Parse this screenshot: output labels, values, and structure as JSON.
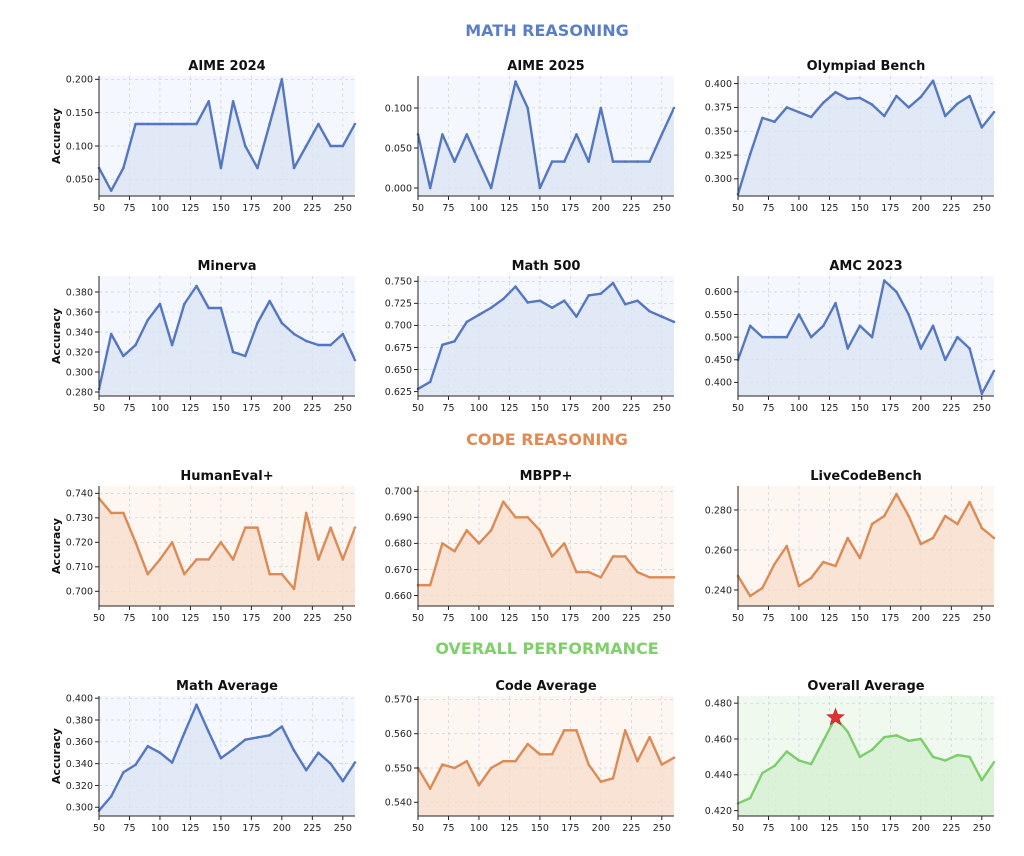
{
  "sections": [
    {
      "id": "math",
      "title": "MATH REASONING",
      "color": "#5b7fc6"
    },
    {
      "id": "code",
      "title": "CODE REASONING",
      "color": "#e08b55"
    },
    {
      "id": "overall",
      "title": "OVERALL PERFORMANCE",
      "color": "#7fcf6a"
    }
  ],
  "colors": {
    "math": {
      "line": "#5577c2",
      "fill": "#dbe4f3",
      "bg": "#f4f7fd"
    },
    "code": {
      "line": "#dc8a56",
      "fill": "#f6dccb",
      "bg": "#fdf6f1"
    },
    "overall": {
      "line": "#7cce6c",
      "fill": "#d6efd0",
      "bg": "#f0f9ee"
    },
    "star": "#e03030"
  },
  "chart_data": [
    {
      "type": "area",
      "id": "aime2024",
      "section": "math",
      "title": "AIME 2024",
      "ylabel": "Accuracy",
      "x": [
        50,
        60,
        70,
        80,
        90,
        100,
        110,
        120,
        130,
        140,
        150,
        160,
        170,
        180,
        190,
        200,
        210,
        220,
        230,
        240,
        250,
        260
      ],
      "y": [
        0.067,
        0.033,
        0.067,
        0.133,
        0.133,
        0.133,
        0.133,
        0.133,
        0.133,
        0.167,
        0.067,
        0.167,
        0.1,
        0.067,
        0.133,
        0.2,
        0.067,
        0.1,
        0.133,
        0.1,
        0.1,
        0.133
      ],
      "xlim": [
        50,
        260
      ],
      "ylim": [
        0.025,
        0.205
      ],
      "xticks": [
        50,
        75,
        100,
        125,
        150,
        175,
        200,
        225,
        250
      ],
      "yticks": [
        0.05,
        0.1,
        0.15,
        0.2
      ],
      "ytick_labels": [
        "0.050",
        "0.100",
        "0.150",
        "0.200"
      ]
    },
    {
      "type": "area",
      "id": "aime2025",
      "section": "math",
      "title": "AIME 2025",
      "ylabel": "",
      "x": [
        50,
        60,
        70,
        80,
        90,
        100,
        110,
        120,
        130,
        140,
        150,
        160,
        170,
        180,
        190,
        200,
        210,
        220,
        230,
        240,
        250,
        260
      ],
      "y": [
        0.067,
        0.0,
        0.067,
        0.033,
        0.067,
        0.033,
        0.0,
        0.067,
        0.133,
        0.1,
        0.0,
        0.033,
        0.033,
        0.067,
        0.033,
        0.1,
        0.033,
        0.033,
        0.033,
        0.033,
        0.067,
        0.1
      ],
      "xlim": [
        50,
        260
      ],
      "ylim": [
        -0.01,
        0.14
      ],
      "xticks": [
        50,
        75,
        100,
        125,
        150,
        175,
        200,
        225,
        250
      ],
      "yticks": [
        0.0,
        0.05,
        0.1
      ],
      "ytick_labels": [
        "0.000",
        "0.050",
        "0.100"
      ]
    },
    {
      "type": "area",
      "id": "olympiad",
      "section": "math",
      "title": "Olympiad Bench",
      "ylabel": "",
      "x": [
        50,
        60,
        70,
        80,
        90,
        100,
        110,
        120,
        130,
        140,
        150,
        160,
        170,
        180,
        190,
        200,
        210,
        220,
        230,
        240,
        250,
        260
      ],
      "y": [
        0.284,
        0.326,
        0.364,
        0.36,
        0.375,
        0.37,
        0.365,
        0.38,
        0.391,
        0.384,
        0.385,
        0.378,
        0.366,
        0.387,
        0.375,
        0.386,
        0.403,
        0.366,
        0.379,
        0.387,
        0.354,
        0.37
      ],
      "xlim": [
        50,
        260
      ],
      "ylim": [
        0.282,
        0.408
      ],
      "xticks": [
        50,
        75,
        100,
        125,
        150,
        175,
        200,
        225,
        250
      ],
      "yticks": [
        0.3,
        0.325,
        0.35,
        0.375,
        0.4
      ],
      "ytick_labels": [
        "0.300",
        "0.325",
        "0.350",
        "0.375",
        "0.400"
      ]
    },
    {
      "type": "area",
      "id": "minerva",
      "section": "math",
      "title": "Minerva",
      "ylabel": "Accuracy",
      "x": [
        50,
        60,
        70,
        80,
        90,
        100,
        110,
        120,
        130,
        140,
        150,
        160,
        170,
        180,
        190,
        200,
        210,
        220,
        230,
        240,
        250,
        260
      ],
      "y": [
        0.283,
        0.338,
        0.316,
        0.327,
        0.352,
        0.368,
        0.327,
        0.368,
        0.386,
        0.364,
        0.364,
        0.32,
        0.316,
        0.349,
        0.371,
        0.349,
        0.338,
        0.331,
        0.327,
        0.327,
        0.338,
        0.312
      ],
      "xlim": [
        50,
        260
      ],
      "ylim": [
        0.276,
        0.396
      ],
      "xticks": [
        50,
        75,
        100,
        125,
        150,
        175,
        200,
        225,
        250
      ],
      "yticks": [
        0.28,
        0.3,
        0.32,
        0.34,
        0.36,
        0.38
      ],
      "ytick_labels": [
        "0.280",
        "0.300",
        "0.320",
        "0.340",
        "0.360",
        "0.380"
      ]
    },
    {
      "type": "area",
      "id": "math500",
      "section": "math",
      "title": "Math 500",
      "ylabel": "",
      "x": [
        50,
        60,
        70,
        80,
        90,
        100,
        110,
        120,
        130,
        140,
        150,
        160,
        170,
        180,
        190,
        200,
        210,
        220,
        230,
        240,
        250,
        260
      ],
      "y": [
        0.628,
        0.636,
        0.678,
        0.682,
        0.704,
        0.712,
        0.72,
        0.73,
        0.744,
        0.726,
        0.728,
        0.72,
        0.728,
        0.71,
        0.734,
        0.736,
        0.748,
        0.724,
        0.728,
        0.716,
        0.71,
        0.704
      ],
      "xlim": [
        50,
        260
      ],
      "ylim": [
        0.62,
        0.756
      ],
      "xticks": [
        50,
        75,
        100,
        125,
        150,
        175,
        200,
        225,
        250
      ],
      "yticks": [
        0.625,
        0.65,
        0.675,
        0.7,
        0.725,
        0.75
      ],
      "ytick_labels": [
        "0.625",
        "0.650",
        "0.675",
        "0.700",
        "0.725",
        "0.750"
      ]
    },
    {
      "type": "area",
      "id": "amc2023",
      "section": "math",
      "title": "AMC 2023",
      "ylabel": "",
      "x": [
        50,
        60,
        70,
        80,
        90,
        100,
        110,
        120,
        130,
        140,
        150,
        160,
        170,
        180,
        190,
        200,
        210,
        220,
        230,
        240,
        250,
        260
      ],
      "y": [
        0.45,
        0.525,
        0.5,
        0.5,
        0.5,
        0.55,
        0.5,
        0.525,
        0.575,
        0.475,
        0.525,
        0.5,
        0.625,
        0.6,
        0.55,
        0.475,
        0.525,
        0.45,
        0.5,
        0.475,
        0.375,
        0.425
      ],
      "xlim": [
        50,
        260
      ],
      "ylim": [
        0.37,
        0.635
      ],
      "xticks": [
        50,
        75,
        100,
        125,
        150,
        175,
        200,
        225,
        250
      ],
      "yticks": [
        0.4,
        0.45,
        0.5,
        0.55,
        0.6
      ],
      "ytick_labels": [
        "0.400",
        "0.450",
        "0.500",
        "0.550",
        "0.600"
      ]
    },
    {
      "type": "area",
      "id": "humaneval",
      "section": "code",
      "title": "HumanEval+",
      "ylabel": "Accuracy",
      "x": [
        50,
        60,
        70,
        80,
        90,
        100,
        110,
        120,
        130,
        140,
        150,
        160,
        170,
        180,
        190,
        200,
        210,
        220,
        230,
        240,
        250,
        260
      ],
      "y": [
        0.738,
        0.732,
        0.732,
        0.72,
        0.707,
        0.713,
        0.72,
        0.707,
        0.713,
        0.713,
        0.72,
        0.713,
        0.726,
        0.726,
        0.707,
        0.707,
        0.701,
        0.732,
        0.713,
        0.726,
        0.713,
        0.726
      ],
      "xlim": [
        50,
        260
      ],
      "ylim": [
        0.694,
        0.743
      ],
      "xticks": [
        50,
        75,
        100,
        125,
        150,
        175,
        200,
        225,
        250
      ],
      "yticks": [
        0.7,
        0.71,
        0.72,
        0.73,
        0.74
      ],
      "ytick_labels": [
        "0.700",
        "0.710",
        "0.720",
        "0.730",
        "0.740"
      ]
    },
    {
      "type": "area",
      "id": "mbpp",
      "section": "code",
      "title": "MBPP+",
      "ylabel": "",
      "x": [
        50,
        60,
        70,
        80,
        90,
        100,
        110,
        120,
        130,
        140,
        150,
        160,
        170,
        180,
        190,
        200,
        210,
        220,
        230,
        240,
        250,
        260
      ],
      "y": [
        0.664,
        0.664,
        0.68,
        0.677,
        0.685,
        0.68,
        0.685,
        0.696,
        0.69,
        0.69,
        0.685,
        0.675,
        0.68,
        0.669,
        0.669,
        0.667,
        0.675,
        0.675,
        0.669,
        0.667,
        0.667,
        0.667
      ],
      "xlim": [
        50,
        260
      ],
      "ylim": [
        0.656,
        0.702
      ],
      "xticks": [
        50,
        75,
        100,
        125,
        150,
        175,
        200,
        225,
        250
      ],
      "yticks": [
        0.66,
        0.67,
        0.68,
        0.69,
        0.7
      ],
      "ytick_labels": [
        "0.660",
        "0.670",
        "0.680",
        "0.690",
        "0.700"
      ]
    },
    {
      "type": "area",
      "id": "livecodebench",
      "section": "code",
      "title": "LiveCodeBench",
      "ylabel": "",
      "x": [
        50,
        60,
        70,
        80,
        90,
        100,
        110,
        120,
        130,
        140,
        150,
        160,
        170,
        180,
        190,
        200,
        210,
        220,
        230,
        240,
        250,
        260
      ],
      "y": [
        0.247,
        0.237,
        0.241,
        0.253,
        0.262,
        0.242,
        0.246,
        0.254,
        0.252,
        0.266,
        0.256,
        0.273,
        0.277,
        0.288,
        0.277,
        0.263,
        0.266,
        0.277,
        0.273,
        0.284,
        0.271,
        0.266
      ],
      "xlim": [
        50,
        260
      ],
      "ylim": [
        0.232,
        0.292
      ],
      "xticks": [
        50,
        75,
        100,
        125,
        150,
        175,
        200,
        225,
        250
      ],
      "yticks": [
        0.24,
        0.26,
        0.28
      ],
      "ytick_labels": [
        "0.240",
        "0.260",
        "0.280"
      ]
    },
    {
      "type": "area",
      "id": "mathavg",
      "section": "math",
      "title": "Math Average",
      "ylabel": "Accuracy",
      "x": [
        50,
        60,
        70,
        80,
        90,
        100,
        110,
        120,
        130,
        140,
        150,
        160,
        170,
        180,
        190,
        200,
        210,
        220,
        230,
        240,
        250,
        260
      ],
      "y": [
        0.297,
        0.31,
        0.332,
        0.339,
        0.356,
        0.35,
        0.341,
        0.368,
        0.394,
        0.369,
        0.345,
        0.353,
        0.362,
        0.364,
        0.366,
        0.374,
        0.352,
        0.334,
        0.35,
        0.34,
        0.324,
        0.341
      ],
      "xlim": [
        50,
        260
      ],
      "ylim": [
        0.292,
        0.402
      ],
      "xticks": [
        50,
        75,
        100,
        125,
        150,
        175,
        200,
        225,
        250
      ],
      "yticks": [
        0.3,
        0.32,
        0.34,
        0.36,
        0.38,
        0.4
      ],
      "ytick_labels": [
        "0.300",
        "0.320",
        "0.340",
        "0.360",
        "0.380",
        "0.400"
      ]
    },
    {
      "type": "area",
      "id": "codeavg",
      "section": "code",
      "title": "Code Average",
      "ylabel": "",
      "x": [
        50,
        60,
        70,
        80,
        90,
        100,
        110,
        120,
        130,
        140,
        150,
        160,
        170,
        180,
        190,
        200,
        210,
        220,
        230,
        240,
        250,
        260
      ],
      "y": [
        0.55,
        0.544,
        0.551,
        0.55,
        0.552,
        0.545,
        0.55,
        0.552,
        0.552,
        0.557,
        0.554,
        0.554,
        0.561,
        0.561,
        0.551,
        0.546,
        0.547,
        0.561,
        0.552,
        0.559,
        0.551,
        0.553
      ],
      "xlim": [
        50,
        260
      ],
      "ylim": [
        0.536,
        0.571
      ],
      "xticks": [
        50,
        75,
        100,
        125,
        150,
        175,
        200,
        225,
        250
      ],
      "yticks": [
        0.54,
        0.55,
        0.56,
        0.57
      ],
      "ytick_labels": [
        "0.540",
        "0.550",
        "0.560",
        "0.570"
      ]
    },
    {
      "type": "area",
      "id": "overallavg",
      "section": "overall",
      "title": "Overall Average",
      "ylabel": "",
      "x": [
        50,
        60,
        70,
        80,
        90,
        100,
        110,
        120,
        130,
        140,
        150,
        160,
        170,
        180,
        190,
        200,
        210,
        220,
        230,
        240,
        250,
        260
      ],
      "y": [
        0.424,
        0.427,
        0.441,
        0.445,
        0.453,
        0.448,
        0.446,
        0.459,
        0.472,
        0.464,
        0.45,
        0.454,
        0.461,
        0.462,
        0.459,
        0.46,
        0.45,
        0.448,
        0.451,
        0.45,
        0.437,
        0.447
      ],
      "xlim": [
        50,
        260
      ],
      "ylim": [
        0.417,
        0.484
      ],
      "xticks": [
        50,
        75,
        100,
        125,
        150,
        175,
        200,
        225,
        250
      ],
      "yticks": [
        0.42,
        0.44,
        0.46,
        0.48
      ],
      "ytick_labels": [
        "0.420",
        "0.440",
        "0.460",
        "0.480"
      ],
      "best": {
        "x": 130,
        "y": 0.472
      }
    }
  ]
}
